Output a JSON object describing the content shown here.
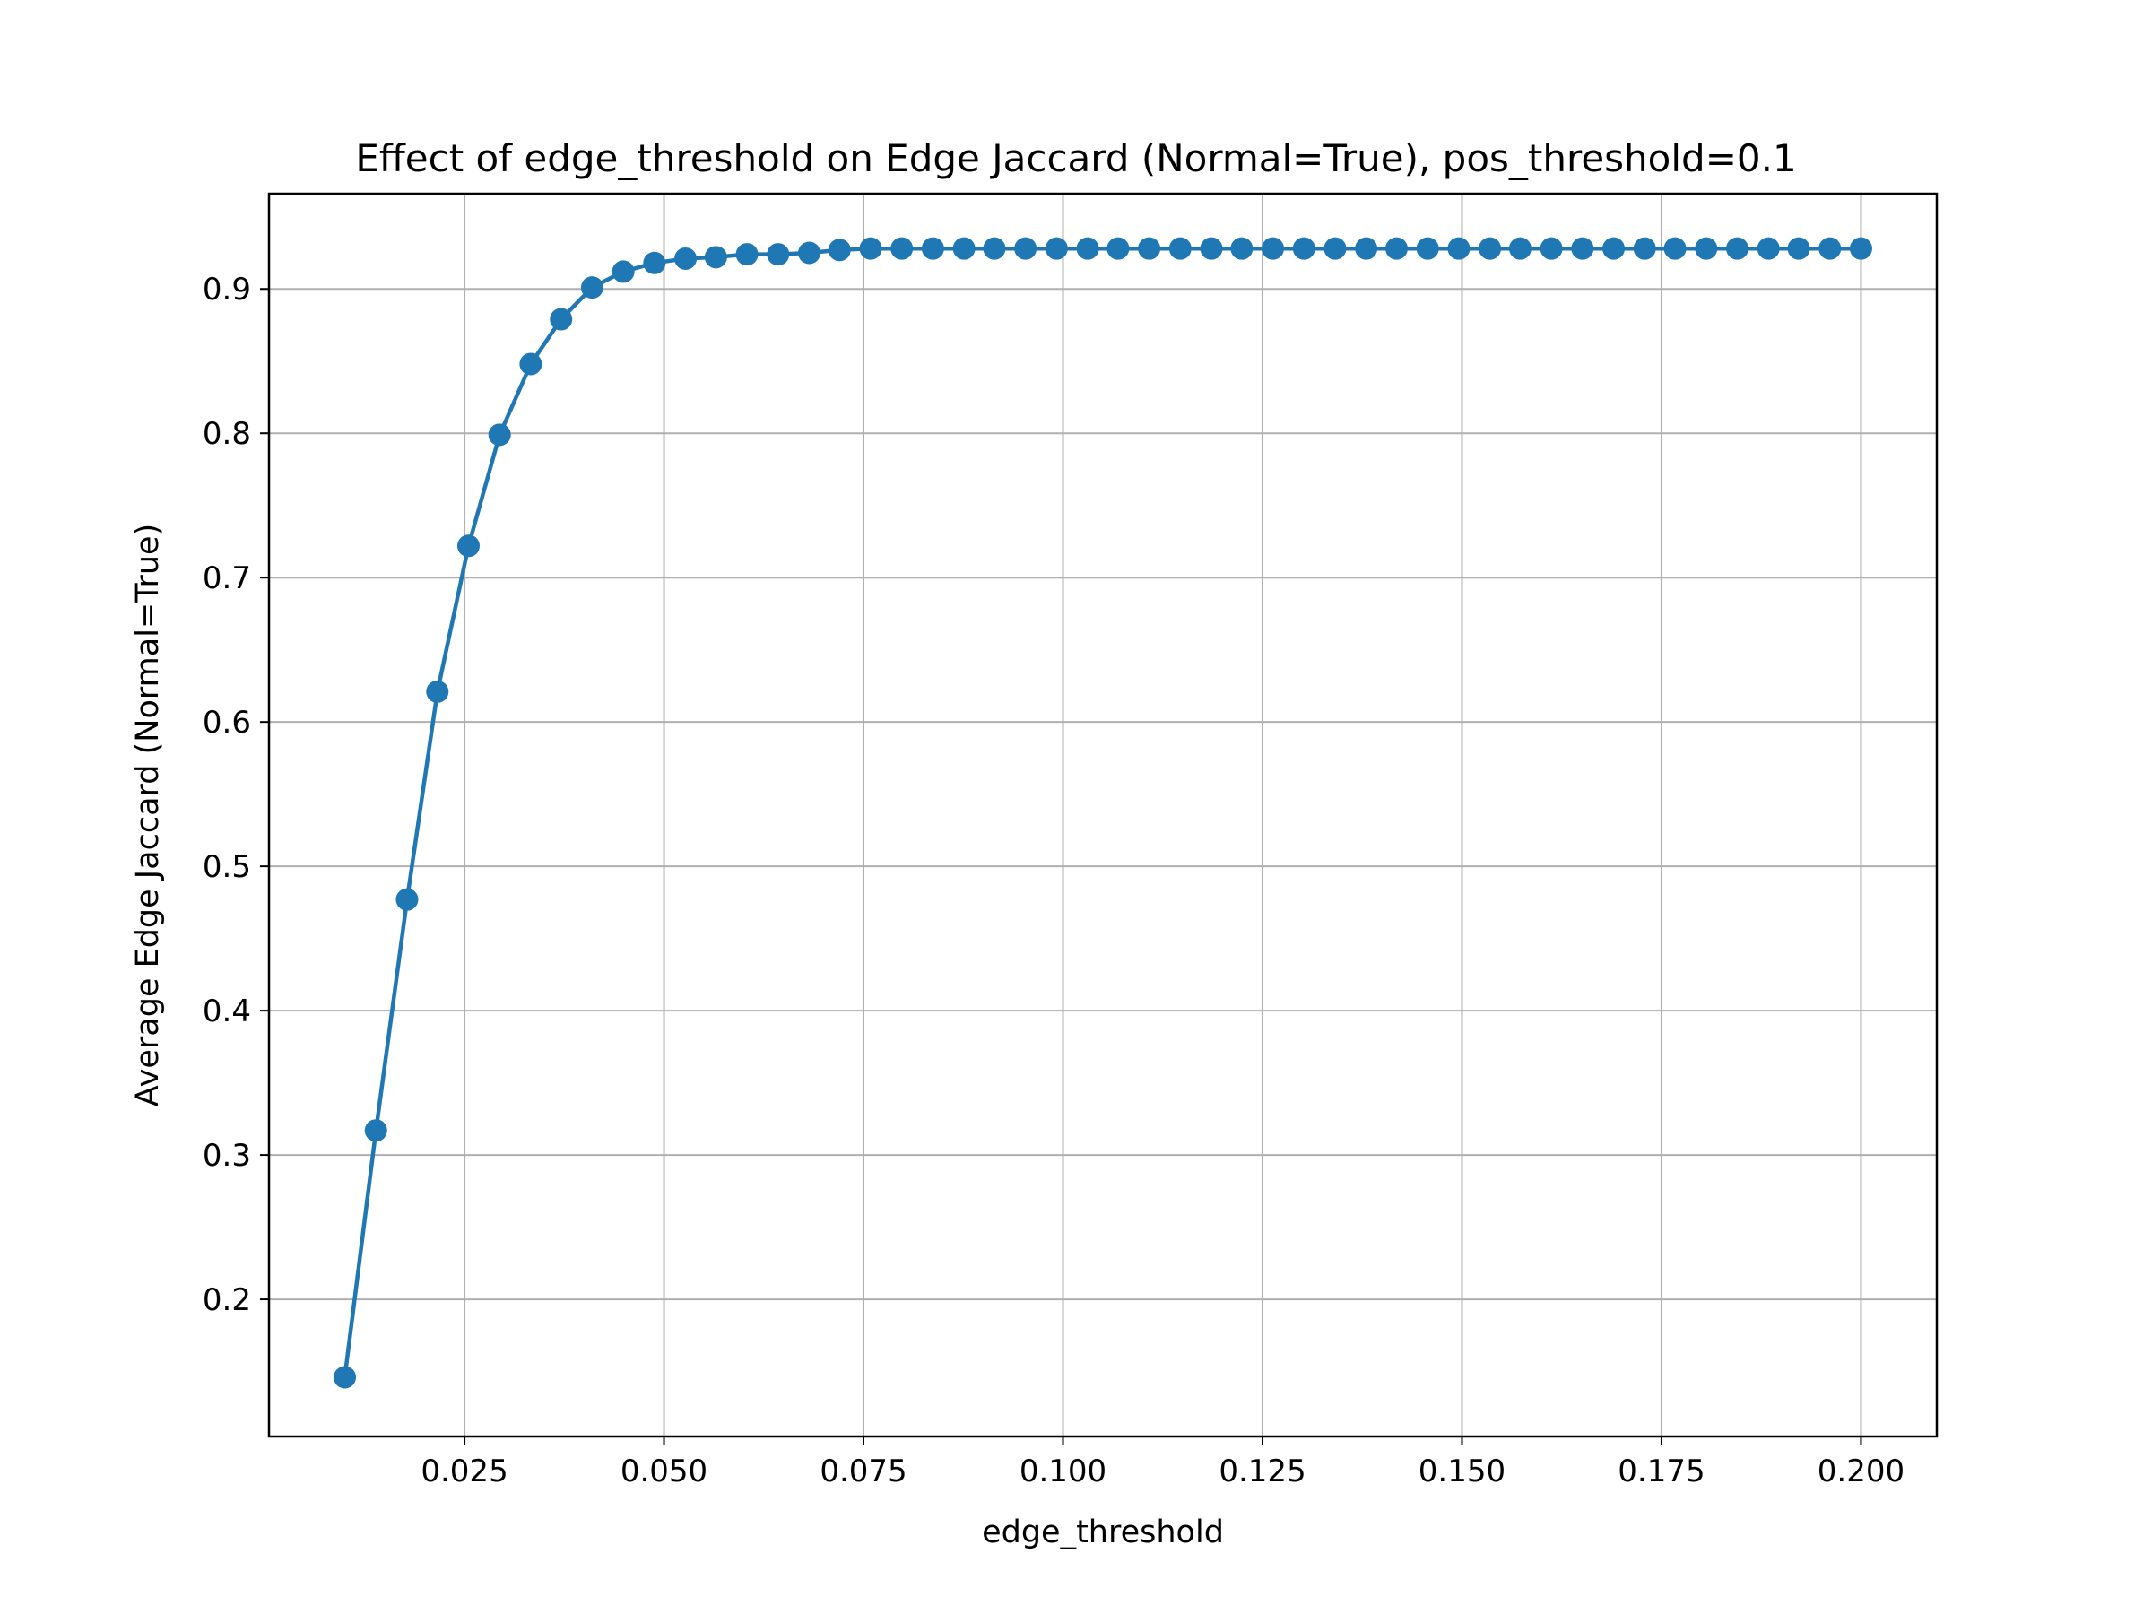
{
  "chart_data": {
    "type": "line",
    "title": "Effect of edge_threshold on Edge Jaccard (Normal=True), pos_threshold=0.1",
    "xlabel": "edge_threshold",
    "ylabel": "Average Edge Jaccard (Normal=True)",
    "xlim": [
      0.0005,
      0.2095
    ],
    "ylim": [
      0.105,
      0.966
    ],
    "grid": true,
    "marker": "circle",
    "series_color": "#1f77b4",
    "grid_color": "#b0b0b0",
    "x_ticks": [
      {
        "value": 0.025,
        "label": "0.025"
      },
      {
        "value": 0.05,
        "label": "0.050"
      },
      {
        "value": 0.075,
        "label": "0.075"
      },
      {
        "value": 0.1,
        "label": "0.100"
      },
      {
        "value": 0.125,
        "label": "0.125"
      },
      {
        "value": 0.15,
        "label": "0.150"
      },
      {
        "value": 0.175,
        "label": "0.175"
      },
      {
        "value": 0.2,
        "label": "0.200"
      }
    ],
    "y_ticks": [
      {
        "value": 0.2,
        "label": "0.2"
      },
      {
        "value": 0.3,
        "label": "0.3"
      },
      {
        "value": 0.4,
        "label": "0.4"
      },
      {
        "value": 0.5,
        "label": "0.5"
      },
      {
        "value": 0.6,
        "label": "0.6"
      },
      {
        "value": 0.7,
        "label": "0.7"
      },
      {
        "value": 0.8,
        "label": "0.8"
      },
      {
        "value": 0.9,
        "label": "0.9"
      }
    ],
    "series": [
      {
        "x": [
          0.01,
          0.0139,
          0.0178,
          0.0216,
          0.0255,
          0.0294,
          0.0333,
          0.0371,
          0.041,
          0.0449,
          0.0488,
          0.0527,
          0.0565,
          0.0604,
          0.0643,
          0.0682,
          0.072,
          0.0759,
          0.0798,
          0.0837,
          0.0876,
          0.0914,
          0.0953,
          0.0992,
          0.1031,
          0.1069,
          0.1108,
          0.1147,
          0.1186,
          0.1224,
          0.1263,
          0.1302,
          0.1341,
          0.138,
          0.1418,
          0.1457,
          0.1496,
          0.1535,
          0.1573,
          0.1612,
          0.1651,
          0.169,
          0.1729,
          0.1767,
          0.1806,
          0.1845,
          0.1884,
          0.1922,
          0.1961,
          0.2
        ],
        "y": [
          0.146,
          0.317,
          0.477,
          0.621,
          0.722,
          0.799,
          0.848,
          0.879,
          0.901,
          0.912,
          0.918,
          0.921,
          0.922,
          0.924,
          0.924,
          0.925,
          0.927,
          0.928,
          0.928,
          0.928,
          0.928,
          0.928,
          0.928,
          0.928,
          0.928,
          0.928,
          0.928,
          0.928,
          0.928,
          0.928,
          0.928,
          0.928,
          0.928,
          0.928,
          0.928,
          0.928,
          0.928,
          0.928,
          0.928,
          0.928,
          0.928,
          0.928,
          0.928,
          0.928,
          0.928,
          0.928,
          0.928,
          0.928,
          0.928,
          0.928
        ]
      }
    ]
  }
}
